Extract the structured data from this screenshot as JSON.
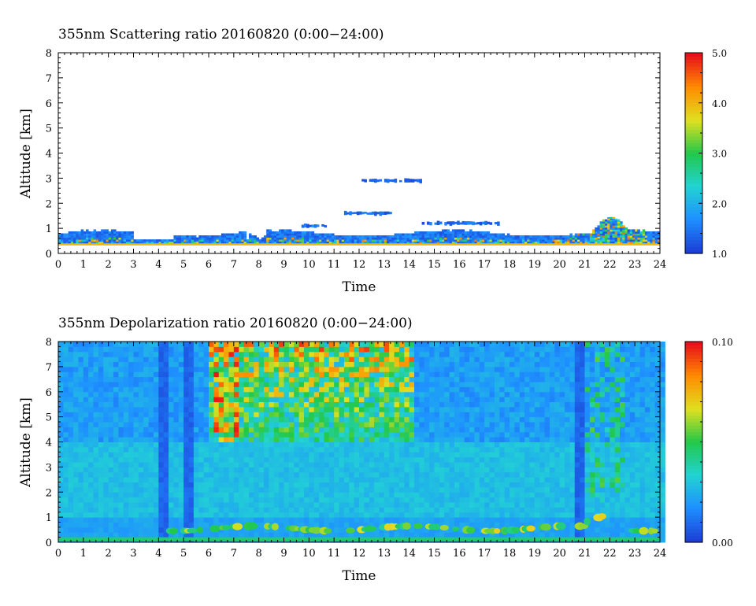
{
  "chart_data": [
    {
      "type": "heatmap",
      "title": "355nm Scattering ratio  20160820 (0:00−24:00)",
      "xlabel": "Time",
      "ylabel": "Altitude [km]",
      "xlim": [
        0,
        24
      ],
      "ylim": [
        0,
        8
      ],
      "x_ticks": [
        0,
        1,
        2,
        3,
        4,
        5,
        6,
        7,
        8,
        9,
        10,
        11,
        12,
        13,
        14,
        15,
        16,
        17,
        18,
        19,
        20,
        21,
        22,
        23,
        24
      ],
      "y_ticks": [
        0,
        1,
        2,
        3,
        4,
        5,
        6,
        7,
        8
      ],
      "colorbar": {
        "range": [
          1.0,
          5.0
        ],
        "ticks": [
          "1.0",
          "2.0",
          "3.0",
          "4.0",
          "5.0"
        ]
      },
      "colormap": [
        "#1c3fd6",
        "#1e90ff",
        "#22d3d3",
        "#22c84a",
        "#e0e020",
        "#ff8c00",
        "#e8101a"
      ],
      "features": [
        {
          "label": "boundary-layer aerosol",
          "time_range": [
            0,
            24
          ],
          "altitude_range_km": [
            0.4,
            0.9
          ],
          "value_range": [
            1.2,
            4.5
          ]
        },
        {
          "label": "ground line",
          "time_range": [
            0,
            24
          ],
          "altitude_km": 0.35,
          "value": 4.0
        },
        {
          "label": "cloud",
          "time_range": [
            12.1,
            14.4
          ],
          "altitude_km": 2.9,
          "value_range": [
            1.1,
            1.5
          ]
        },
        {
          "label": "cloud",
          "time_range": [
            11.4,
            13.2
          ],
          "altitude_km": 1.6,
          "value_range": [
            1.1,
            1.6
          ]
        },
        {
          "label": "cloud",
          "time_range": [
            14.5,
            17.6
          ],
          "altitude_km": 1.2,
          "value_range": [
            1.1,
            1.6
          ]
        },
        {
          "label": "cloud",
          "time_range": [
            9.7,
            10.6
          ],
          "altitude_km": 1.1,
          "value_range": [
            1.1,
            1.8
          ]
        },
        {
          "label": "elevated aerosol",
          "time_range": [
            21.5,
            22.6
          ],
          "altitude_range_km": [
            0.6,
            1.4
          ],
          "value_range": [
            2.0,
            4.5
          ]
        }
      ]
    },
    {
      "type": "heatmap",
      "title": "355nm Depolarization ratio  20160820 (0:00−24:00)",
      "xlabel": "Time",
      "ylabel": "Altitude [km]",
      "xlim": [
        0,
        24
      ],
      "ylim": [
        0,
        8
      ],
      "x_ticks": [
        0,
        1,
        2,
        3,
        4,
        5,
        6,
        7,
        8,
        9,
        10,
        11,
        12,
        13,
        14,
        15,
        16,
        17,
        18,
        19,
        20,
        21,
        22,
        23,
        24
      ],
      "y_ticks": [
        0,
        1,
        2,
        3,
        4,
        5,
        6,
        7,
        8
      ],
      "colorbar": {
        "range": [
          0.0,
          0.1
        ],
        "ticks": [
          "0.00",
          "0.10"
        ]
      },
      "colormap": [
        "#1c3fd6",
        "#1e90ff",
        "#22d3d3",
        "#22c84a",
        "#e0e020",
        "#ff8c00",
        "#e8101a"
      ],
      "features": [
        {
          "label": "background",
          "value_range": [
            0.01,
            0.03
          ]
        },
        {
          "label": "high-altitude noise",
          "time_range": [
            6,
            14
          ],
          "altitude_range_km": [
            4,
            8
          ],
          "value_range": [
            0.03,
            0.1
          ]
        },
        {
          "label": "aerosol layer",
          "time_range": [
            4,
            24
          ],
          "altitude_range_km": [
            0.3,
            1.5
          ],
          "value_range": [
            0.04,
            0.07
          ]
        }
      ]
    }
  ]
}
